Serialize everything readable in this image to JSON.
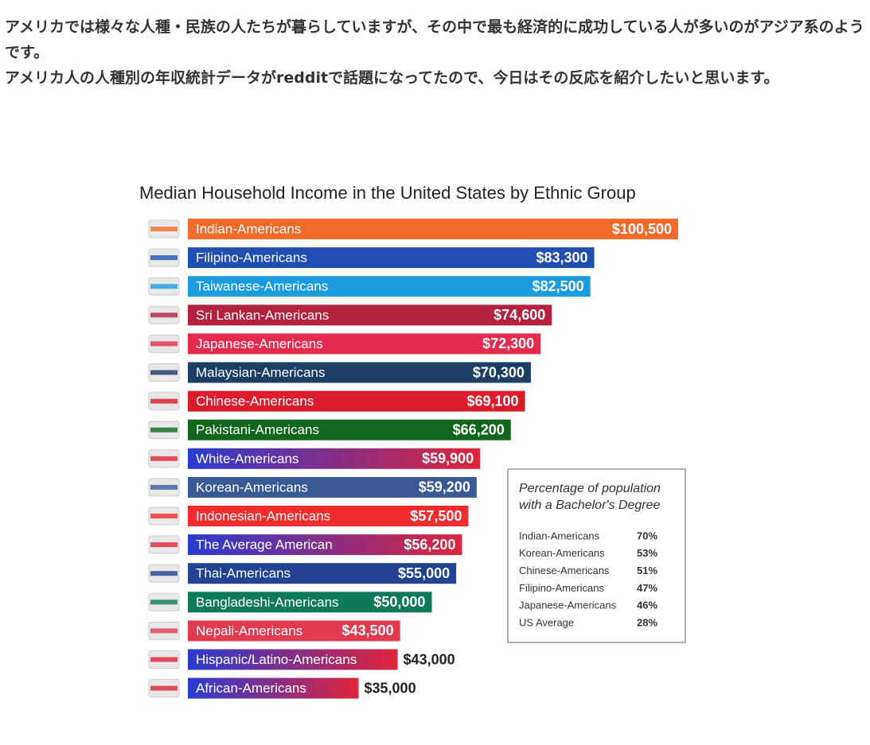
{
  "article": {
    "paragraphs": [
      "アメリカでは様々な人種・民族の人たちが暮らしていますが、その中で最も経済的に成功している人が多いのがアジア系のようです。",
      "アメリカ人の人種別の年収統計データがredditで話題になってたので、今日はその反応を紹介したいと思います。"
    ]
  },
  "chart_data": {
    "type": "bar",
    "orientation": "horizontal",
    "title": "Median Household Income in the United States  by Ethnic Group",
    "categories": [
      "Indian-Americans",
      "Filipino-Americans",
      "Taiwanese-Americans",
      "Sri Lankan-Americans",
      "Japanese-Americans",
      "Malaysian-Americans",
      "Chinese-Americans",
      "Pakistani-Americans",
      "White-Americans",
      "Korean-Americans",
      "Indonesian-Americans",
      "The Average American",
      "Thai-Americans",
      "Bangladeshi-Americans",
      "Nepali-Americans",
      "Hispanic/Latino-Americans",
      "African-Americans"
    ],
    "values": [
      100500,
      83300,
      82500,
      74600,
      72300,
      70300,
      69100,
      66200,
      59900,
      59200,
      57500,
      56200,
      55000,
      50000,
      43500,
      43000,
      35000
    ],
    "value_labels": [
      "$100,500",
      "$83,300",
      "$82,500",
      "$74,600",
      "$72,300",
      "$70,300",
      "$69,100",
      "$66,200",
      "$59,900",
      "$59,200",
      "$57,500",
      "$56,200",
      "$55,000",
      "$50,000",
      "$43,500",
      "$43,000",
      "$35,000"
    ],
    "colors": [
      "#f26b2b",
      "#1f4fb0",
      "#1b9be0",
      "#b3213f",
      "#e52b50",
      "#1d3c66",
      "#d91d2a",
      "#11661d",
      [
        "#2a3bd0",
        "#e0243c"
      ],
      "#3a5a96",
      "#ef2d2d",
      [
        "#2a3bd0",
        "#e0243c"
      ],
      "#23428f",
      "#0f7a5a",
      "#e23a50",
      [
        "#2a3bd0",
        "#e0243c"
      ],
      [
        "#2a3bd0",
        "#e0243c"
      ]
    ],
    "inset": {
      "title": [
        "Percentage of population",
        "with a Bachelor's Degree"
      ],
      "rows": [
        [
          "Indian-Americans",
          "70%"
        ],
        [
          "Korean-Americans",
          "53%"
        ],
        [
          "Chinese-Americans",
          "51%"
        ],
        [
          "Filipino-Americans",
          "47%"
        ],
        [
          "Japanese-Americans",
          "46%"
        ],
        [
          "US Average",
          "28%"
        ]
      ]
    }
  }
}
